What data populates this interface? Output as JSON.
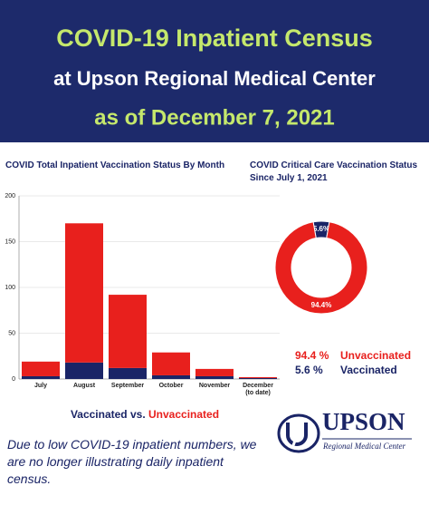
{
  "header": {
    "title": "COVID-19 Inpatient Census",
    "subtitle": "at Upson Regional Medical Center",
    "date": "as of December 7, 2021"
  },
  "chart_data": [
    {
      "type": "bar",
      "stacked": true,
      "title": "COVID Total Inpatient Vaccination Status By Month",
      "categories": [
        "July",
        "August",
        "September",
        "October",
        "November",
        "December (to date)"
      ],
      "series": [
        {
          "name": "Vaccinated",
          "color": "#1a2466",
          "values": [
            3,
            18,
            12,
            4,
            3,
            1
          ]
        },
        {
          "name": "Unvaccinated",
          "color": "#e8201d",
          "values": [
            16,
            152,
            80,
            25,
            8,
            1
          ]
        }
      ],
      "legend_separator": "vs.",
      "ylim": [
        0,
        200
      ],
      "yticks": [
        0,
        50,
        100,
        150,
        200
      ],
      "grid": true
    },
    {
      "type": "pie",
      "donut": true,
      "title": "COVID Critical Care Vaccination Status Since July 1, 2021",
      "categories": [
        "Vaccinated",
        "Unvaccinated"
      ],
      "values": [
        5.6,
        94.4
      ],
      "value_labels": [
        "5.6%",
        "94.4%"
      ],
      "legend_value_labels": [
        "5.6 %",
        "94.4 %"
      ],
      "colors": [
        "#1a2466",
        "#e8201d"
      ]
    }
  ],
  "footer": {
    "note": "Due to low COVID-19 inpatient numbers, we are no longer illustrating daily inpatient census.",
    "logo_name": "UPSON",
    "logo_tagline": "Regional Medical Center"
  }
}
